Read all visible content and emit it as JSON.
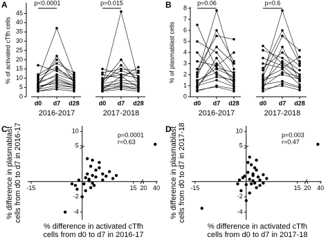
{
  "chart_data": [
    {
      "type": "paired",
      "letter": "A",
      "ylabel": "% of activated cTfh cells",
      "ylim": [
        0,
        50
      ],
      "yticks": [
        0,
        5,
        10,
        15,
        20,
        25,
        30,
        35,
        40,
        45
      ],
      "categories": [
        "d0",
        "d7",
        "d28"
      ],
      "color": "#000000",
      "groups": [
        {
          "label": "2016-2017",
          "p_label": "p<0.0001",
          "subjects": [
            [
              5,
              8,
              6
            ],
            [
              7,
              12,
              9
            ],
            [
              4,
              6,
              5
            ],
            [
              9,
              15,
              10
            ],
            [
              6,
              22,
              8
            ],
            [
              3,
              5,
              4
            ],
            [
              10,
              37,
              12
            ],
            [
              8,
              11,
              7
            ],
            [
              5,
              9,
              6
            ],
            [
              12,
              18,
              13
            ],
            [
              6,
              7,
              5
            ],
            [
              4,
              10,
              6
            ],
            [
              17,
              14,
              9
            ],
            [
              7,
              20,
              11
            ],
            [
              3,
              4,
              3
            ],
            [
              11,
              16,
              8
            ]
          ]
        },
        {
          "label": "2017-2018",
          "p_label": "p=0.015",
          "subjects": [
            [
              5,
              6,
              5
            ],
            [
              7,
              9,
              8
            ],
            [
              4,
              5,
              4
            ],
            [
              9,
              14,
              11
            ],
            [
              6,
              46,
              9
            ],
            [
              3,
              6,
              4
            ],
            [
              10,
              12,
              13
            ],
            [
              8,
              20,
              7
            ],
            [
              5,
              8,
              6
            ],
            [
              13,
              15,
              14
            ],
            [
              6,
              7,
              7
            ],
            [
              4,
              11,
              5
            ],
            [
              15,
              12,
              10
            ],
            [
              7,
              17,
              9
            ],
            [
              3,
              4,
              3
            ],
            [
              12,
              10,
              16
            ]
          ]
        }
      ]
    },
    {
      "type": "paired",
      "letter": "B",
      "ylabel": "% of plasmablast cells",
      "ylim": [
        0,
        8
      ],
      "yticks": [
        0,
        1,
        2,
        3,
        4,
        5,
        6,
        7,
        8
      ],
      "categories": [
        "d0",
        "d7",
        "d28"
      ],
      "color": "#000000",
      "groups": [
        {
          "label": "2016-2017",
          "p_label": "p=0.06",
          "subjects": [
            [
              1.2,
              1.8,
              1.5
            ],
            [
              6.5,
              2.5,
              1.8
            ],
            [
              0.8,
              3.5,
              1.2
            ],
            [
              2.0,
              7.8,
              2.5
            ],
            [
              1.5,
              2.2,
              1.0
            ],
            [
              5.0,
              4.0,
              2.0
            ],
            [
              0.5,
              1.0,
              0.7
            ],
            [
              1.8,
              6.0,
              3.2
            ],
            [
              3.2,
              2.8,
              4.0
            ],
            [
              1.0,
              1.5,
              0.9
            ],
            [
              2.5,
              5.5,
              5.2
            ],
            [
              0.9,
              3.0,
              1.6
            ],
            [
              4.0,
              2.0,
              1.4
            ],
            [
              1.4,
              2.6,
              2.2
            ],
            [
              2.2,
              4.5,
              3.0
            ],
            [
              0.6,
              0.9,
              0.5
            ]
          ]
        },
        {
          "label": "2017-2018",
          "p_label": "p=0.6",
          "subjects": [
            [
              1.5,
              2.0,
              1.6
            ],
            [
              4.6,
              3.0,
              2.0
            ],
            [
              0.8,
              4.5,
              1.4
            ],
            [
              2.0,
              7.8,
              3.2
            ],
            [
              1.6,
              2.5,
              1.1
            ],
            [
              4.2,
              3.5,
              2.4
            ],
            [
              0.5,
              1.2,
              0.8
            ],
            [
              1.8,
              5.5,
              4.2
            ],
            [
              3.0,
              2.6,
              3.6
            ],
            [
              1.1,
              1.4,
              0.9
            ],
            [
              2.6,
              4.0,
              2.8
            ],
            [
              0.9,
              2.2,
              1.8
            ],
            [
              3.5,
              2.8,
              1.5
            ],
            [
              1.3,
              3.2,
              2.0
            ],
            [
              2.4,
              6.0,
              3.0
            ],
            [
              0.7,
              1.0,
              0.6
            ]
          ]
        }
      ]
    },
    {
      "type": "scatter",
      "letter": "C",
      "xlabel": [
        "% difference in activated cTfh",
        "cells from d0 to d7 in 2016-17"
      ],
      "ylabel": [
        "% difference in plasmablast",
        "cells from d0 to d7 in 2016-17"
      ],
      "annotations": [
        "p=0.0001",
        "r=0.63"
      ],
      "xlim": [
        -16,
        42
      ],
      "xbreak": 17.5,
      "xticks": [
        -15,
        15,
        20,
        40
      ],
      "ylim": [
        -5,
        12
      ],
      "ybreak": 4.5,
      "yticks": [
        -4,
        -2,
        5,
        10
      ],
      "color": "#000000",
      "x": [
        -5,
        -2,
        -1,
        0.5,
        1,
        1.5,
        2,
        2.5,
        3,
        3.5,
        4,
        5,
        6,
        7,
        8,
        9,
        10,
        -1.5,
        0,
        1,
        2,
        3,
        4,
        5,
        1.5,
        2.5,
        3,
        -3,
        38,
        6
      ],
      "y": [
        -4,
        -0.5,
        0.2,
        -0.3,
        0.5,
        1,
        0.3,
        2,
        0.8,
        -0.5,
        1.5,
        2.5,
        1,
        0.7,
        1.3,
        0.4,
        0.8,
        -1,
        -2,
        -1.2,
        0.1,
        -0.2,
        0.6,
        1.8,
        3,
        -0.8,
        2.8,
        -0.3,
        5.5,
        0.2
      ]
    },
    {
      "type": "scatter",
      "letter": "D",
      "xlabel": [
        "% difference in activated cTfh",
        "cells from d0 to d7 in 2017-18"
      ],
      "ylabel": [
        "% difference in plasmablast",
        "cells from d0 to d7 in 2017-18"
      ],
      "annotations": [
        "p=0.003",
        "r=0.47"
      ],
      "xlim": [
        -16,
        42
      ],
      "xbreak": 17.5,
      "xticks": [
        -15,
        15,
        20,
        40
      ],
      "ylim": [
        -5,
        12
      ],
      "ybreak": 4.5,
      "yticks": [
        -4,
        -2,
        5,
        10
      ],
      "color": "#000000",
      "x": [
        -13,
        -2,
        -1,
        0,
        0.5,
        1,
        1.5,
        2,
        2.5,
        3,
        3.5,
        4,
        5,
        6,
        -1.5,
        0,
        1,
        2,
        3,
        4,
        -0.5,
        1.5,
        2.5,
        3,
        -2.5,
        36,
        0.5,
        2,
        5,
        1
      ],
      "y": [
        -3.5,
        0.2,
        0.5,
        -0.4,
        1.2,
        0.3,
        2.2,
        0.8,
        -0.2,
        1.5,
        0.6,
        -0.5,
        0.9,
        0.4,
        -1.2,
        -2.5,
        -1.5,
        1,
        2.8,
        0.2,
        0.7,
        -0.3,
        1.8,
        -0.8,
        -0.3,
        5.5,
        2.5,
        0.1,
        -0.2,
        3.2
      ]
    }
  ]
}
